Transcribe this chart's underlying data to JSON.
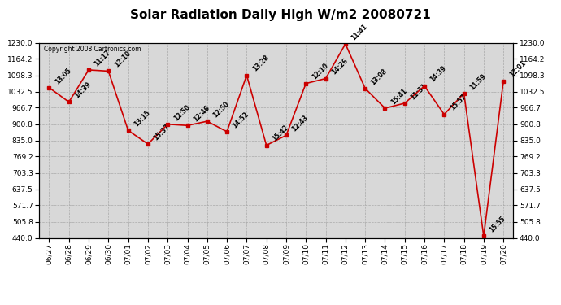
{
  "title": "Solar Radiation Daily High W/m2 20080721",
  "copyright": "Copyright 2008 Cartronics.com",
  "dates": [
    "06/27",
    "06/28",
    "06/29",
    "06/30",
    "07/01",
    "07/02",
    "07/03",
    "07/04",
    "07/05",
    "07/06",
    "07/07",
    "07/08",
    "07/09",
    "07/10",
    "07/11",
    "07/12",
    "07/13",
    "07/14",
    "07/15",
    "07/16",
    "07/17",
    "07/18",
    "07/19",
    "07/20"
  ],
  "values": [
    1048,
    990,
    1120,
    1115,
    875,
    820,
    900,
    895,
    912,
    870,
    1098,
    815,
    855,
    1065,
    1085,
    1225,
    1045,
    965,
    985,
    1055,
    940,
    1025,
    447,
    1075
  ],
  "time_labels": [
    "13:05",
    "14:39",
    "11:17",
    "12:10",
    "13:15",
    "15:37",
    "12:50",
    "12:46",
    "12:50",
    "14:52",
    "13:28",
    "15:42",
    "12:43",
    "12:10",
    "14:26",
    "11:41",
    "13:08",
    "15:41",
    "11:31",
    "14:39",
    "15:57",
    "11:59",
    "15:55",
    "12:01"
  ],
  "ymin": 440.0,
  "ymax": 1230.0,
  "yticks": [
    440.0,
    505.8,
    571.7,
    637.5,
    703.3,
    769.2,
    835.0,
    900.8,
    966.7,
    1032.5,
    1098.3,
    1164.2,
    1230.0
  ],
  "line_color": "#cc0000",
  "marker_color": "#cc0000",
  "grid_color": "#aaaaaa",
  "bg_color": "#d8d8d8",
  "title_fontsize": 11,
  "label_fontsize": 5.5,
  "tick_fontsize": 6.5,
  "copyright_fontsize": 5.5
}
